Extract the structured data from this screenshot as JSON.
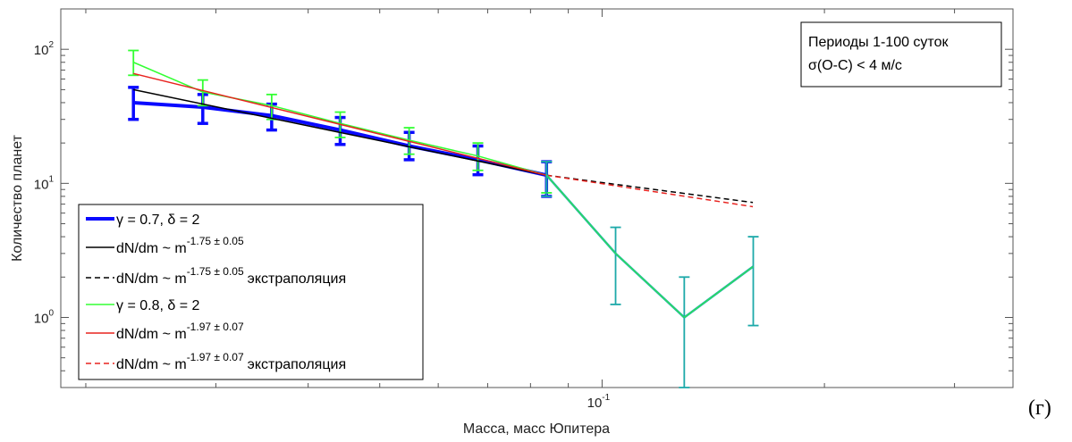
{
  "panel_letter": "(г)",
  "colors": {
    "blue": "#0a0aff",
    "black": "#000000",
    "green": "#33ff33",
    "red": "#e8231f",
    "teal": "#1da9a9",
    "axis": "#555555"
  },
  "chart_data": {
    "type": "line",
    "x_scale": "log",
    "y_scale": "log",
    "xlabel": "Масса, масс Юпитера",
    "ylabel": "Количество планет",
    "xlim": [
      0.0185,
      0.36
    ],
    "ylim": [
      0.3,
      200
    ],
    "grid": false,
    "legend_position": "bottom-left",
    "x_ticks": [
      {
        "value": 0.1,
        "base": "10",
        "exp": "-1"
      }
    ],
    "y_ticks": [
      {
        "value": 1,
        "base": "10",
        "exp": "0"
      },
      {
        "value": 10,
        "base": "10",
        "exp": "1"
      },
      {
        "value": 100,
        "base": "10",
        "exp": "2"
      }
    ],
    "annotation": {
      "line1": "Периоды 1-100 суток",
      "line2": "σ(O-C) < 4 м/с"
    },
    "series": [
      {
        "name": "γ = 0.7, δ = 2",
        "color": "#0a0aff",
        "x": [
          0.0232,
          0.0288,
          0.0357,
          0.0442,
          0.0548,
          0.0679,
          0.0841
        ],
        "y": [
          40,
          37,
          32,
          25,
          19,
          15,
          11.5
        ],
        "err_low": [
          30,
          28,
          25,
          19.5,
          15,
          11.6,
          8
        ],
        "err_high": [
          52,
          46,
          39,
          31,
          24,
          19,
          14.5
        ]
      },
      {
        "name": "dN/dm ~ m^(-1.75 ± 0.05)",
        "color": "#000000",
        "style": "solid",
        "x": [
          0.0232,
          0.0841
        ],
        "y": [
          50,
          11.5
        ]
      },
      {
        "name": "dN/dm ~ m^(-1.75 ± 0.05) экстраполяция",
        "color": "#000000",
        "style": "dashed",
        "x": [
          0.0841,
          0.16
        ],
        "y": [
          11.5,
          7.2
        ]
      },
      {
        "name": "γ = 0.8, δ = 2",
        "color": "#33ff33",
        "x": [
          0.0232,
          0.0288,
          0.0357,
          0.0442,
          0.0548,
          0.0679,
          0.0841
        ],
        "y": [
          80,
          48,
          38,
          28,
          21,
          16,
          11.5
        ],
        "err_low": [
          64,
          38,
          30,
          22,
          16.5,
          12.5,
          8.5
        ],
        "err_high": [
          98,
          59,
          46,
          34,
          26,
          20,
          14.5
        ]
      },
      {
        "name": "dN/dm ~ m^(-1.97 ± 0.07)",
        "color": "#e8231f",
        "style": "solid",
        "x": [
          0.0232,
          0.0841
        ],
        "y": [
          66,
          11.5
        ]
      },
      {
        "name": "dN/dm ~ m^(-1.97 ± 0.07) экстраполяция",
        "color": "#e8231f",
        "style": "dashed",
        "x": [
          0.0841,
          0.16
        ],
        "y": [
          11.5,
          6.7
        ]
      },
      {
        "name": "",
        "color": "#1da9a9",
        "x": [
          0.0841,
          0.1043,
          0.1292,
          0.1602
        ],
        "y": [
          11.5,
          3,
          1,
          2.4
        ],
        "err_low": [
          8,
          1.25,
          0.3,
          0.87
        ],
        "err_high": [
          14.5,
          4.7,
          2,
          4
        ]
      }
    ],
    "legend": {
      "l1": "γ = 0.7, δ = 2",
      "l2_pre": "dN/dm ~ m",
      "l2_sup": "-1.75 ± 0.05",
      "l3_pre": "dN/dm ~ m",
      "l3_sup": "-1.75 ± 0.05",
      "l3_post": "экстраполяция",
      "l4": "γ = 0.8, δ = 2",
      "l5_pre": "dN/dm ~ m",
      "l5_sup": "-1.97 ± 0.07",
      "l6_pre": "dN/dm ~ m",
      "l6_sup": "-1.97 ± 0.07",
      "l6_post": "экстраполяция"
    }
  }
}
